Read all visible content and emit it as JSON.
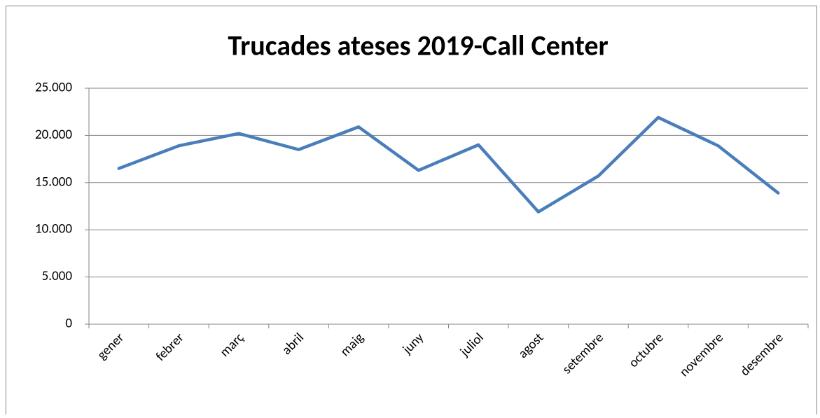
{
  "chart_data": {
    "type": "line",
    "title": "Trucades ateses 2019-Call Center",
    "categories": [
      "gener",
      "febrer",
      "març",
      "abril",
      "maig",
      "juny",
      "juliol",
      "agost",
      "setembre",
      "octubre",
      "novembre",
      "desembre"
    ],
    "series": [
      {
        "color": "#4a7ebb",
        "values": [
          16500,
          18900,
          20200,
          18500,
          20900,
          16300,
          19000,
          11900,
          15700,
          21900,
          18900,
          13900
        ]
      }
    ],
    "ylim": [
      0,
      25000
    ],
    "yticks": [
      0,
      {
        "value": 5000,
        "label": "5.000"
      },
      {
        "value": 10000,
        "label": "10.000"
      },
      {
        "value": 15000,
        "label": "15.000"
      },
      {
        "value": 20000,
        "label": "20.000"
      },
      {
        "value": 25000,
        "label": "25.000"
      }
    ],
    "grid": true
  }
}
